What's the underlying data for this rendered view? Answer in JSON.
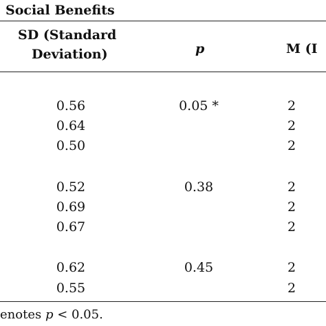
{
  "table": {
    "group_header": "Social Benefits",
    "headers": {
      "sd_line1": "SD (Standard",
      "sd_line2": "Deviation)",
      "p": "p",
      "m_partial": "M (I"
    },
    "rows": [
      {
        "sd": "0.56",
        "p": "0.05 *",
        "m": "2"
      },
      {
        "sd": "0.64",
        "p": "",
        "m": "2"
      },
      {
        "sd": "0.50",
        "p": "",
        "m": "2"
      },
      {
        "sd": "0.52",
        "p": "0.38",
        "m": "2"
      },
      {
        "sd": "0.69",
        "p": "",
        "m": "2"
      },
      {
        "sd": "0.67",
        "p": "",
        "m": "2"
      },
      {
        "sd": "0.62",
        "p": "0.45",
        "m": "2"
      },
      {
        "sd": "0.55",
        "p": "",
        "m": "2"
      }
    ]
  },
  "footnote": {
    "prefix": "enotes ",
    "var": "p",
    "suffix": " < 0.05."
  }
}
